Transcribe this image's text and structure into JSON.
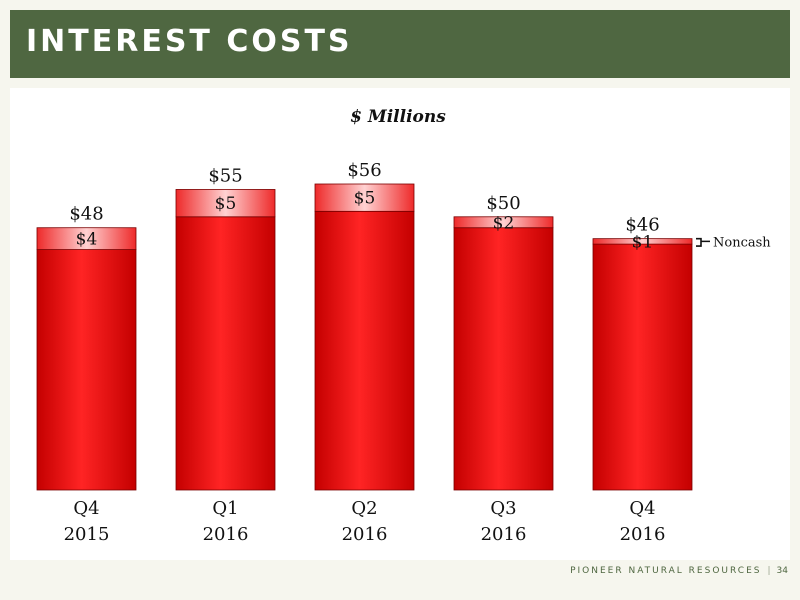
{
  "header": {
    "title": "INTEREST COSTS"
  },
  "footer": {
    "company": "PIONEER NATURAL RESOURCES",
    "separator": "|",
    "page": "34"
  },
  "colors": {
    "header_bg": "#4f6741",
    "bar_dark": "#c40000",
    "bar_light": "#ff2424",
    "noncash_light": "#ffd2d2",
    "noncash_dark": "#ee2a2a"
  },
  "chart_data": {
    "type": "bar",
    "stacked": true,
    "title": "$ Millions",
    "categories": [
      [
        "Q4",
        "2015"
      ],
      [
        "Q1",
        "2016"
      ],
      [
        "Q2",
        "2016"
      ],
      [
        "Q3",
        "2016"
      ],
      [
        "Q4",
        "2016"
      ]
    ],
    "series": [
      {
        "values": [
          44,
          50,
          51,
          48,
          45
        ]
      },
      {
        "name": "Noncash",
        "values": [
          4,
          5,
          5,
          2,
          1
        ],
        "labels": [
          "$4",
          "$5",
          "$5",
          "$2",
          "$1"
        ]
      }
    ],
    "totals": [
      48,
      55,
      56,
      50,
      46
    ],
    "total_labels": [
      "$48",
      "$55",
      "$56",
      "$50",
      "$46"
    ],
    "ylim": [
      0,
      56
    ],
    "grid": false,
    "legend": "right-annotation"
  }
}
